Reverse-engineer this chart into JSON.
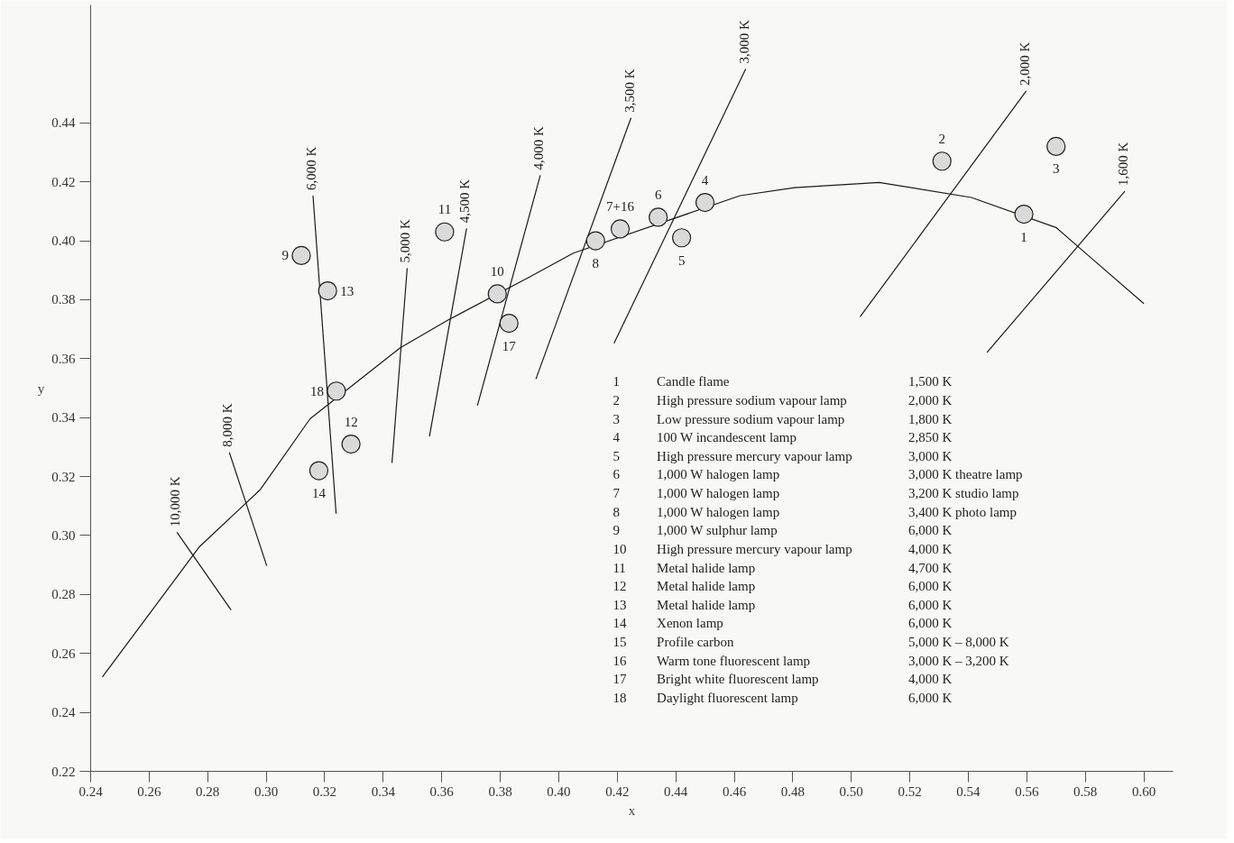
{
  "chart_data": {
    "type": "scatter",
    "xlabel": "x",
    "ylabel": "y",
    "xlim": [
      0.24,
      0.61
    ],
    "ylim": [
      0.22,
      0.48
    ],
    "xticks": [
      0.24,
      0.26,
      0.28,
      {
        "value": 0.3,
        "label": "0.30"
      },
      0.32,
      0.34,
      0.36,
      0.38,
      {
        "value": 0.4,
        "label": "0.40"
      },
      0.42,
      0.44,
      0.46,
      0.48,
      {
        "value": 0.5,
        "label": "0.50"
      },
      0.52,
      0.54,
      0.56,
      0.58,
      {
        "value": 0.6,
        "label": "0.60"
      }
    ],
    "yticks": [
      0.22,
      0.24,
      0.26,
      0.28,
      {
        "value": 0.3,
        "label": "0.30"
      },
      0.32,
      0.34,
      0.36,
      0.38,
      {
        "value": 0.4,
        "label": "0.40"
      },
      0.42,
      0.44
    ],
    "series": [
      {
        "type": "line",
        "color": "#1a1a1a",
        "x": [
          0.244,
          0.277,
          0.298,
          0.315,
          0.3457,
          0.362,
          0.39,
          0.405,
          0.462,
          0.4806,
          0.5095,
          0.541,
          0.57,
          0.581,
          0.6
        ],
        "values": [
          0.252,
          0.296,
          0.3156,
          0.3396,
          0.3636,
          0.373,
          0.3877,
          0.3958,
          0.4153,
          0.418,
          0.4198,
          0.4147,
          0.4045,
          0.395,
          0.3787
        ]
      },
      {
        "type": "line",
        "name": "10,000 K",
        "color": "#1a1a1a",
        "x": [
          0.2695,
          0.288
        ],
        "values": [
          0.3011,
          0.2747
        ]
      },
      {
        "type": "line",
        "name": "8,000 K",
        "color": "#1a1a1a",
        "x": [
          0.2874,
          0.3002
        ],
        "values": [
          0.3282,
          0.2897
        ]
      },
      {
        "type": "line",
        "name": "6,000 K",
        "color": "#1a1a1a",
        "x": [
          0.316,
          0.3239
        ],
        "values": [
          0.4153,
          0.3074
        ]
      },
      {
        "type": "line",
        "name": "5,000 K",
        "color": "#1a1a1a",
        "x": [
          0.3482,
          0.343
        ],
        "values": [
          0.3907,
          0.3246
        ]
      },
      {
        "type": "line",
        "name": "4,500 K",
        "color": "#1a1a1a",
        "x": [
          0.3685,
          0.3558
        ],
        "values": [
          0.4042,
          0.3336
        ]
      },
      {
        "type": "line",
        "name": "4,000 K",
        "color": "#1a1a1a",
        "x": [
          0.3937,
          0.3722
        ],
        "values": [
          0.4222,
          0.3441
        ]
      },
      {
        "type": "line",
        "name": "3,500 K",
        "color": "#1a1a1a",
        "x": [
          0.4247,
          0.3922
        ],
        "values": [
          0.4417,
          0.3531
        ]
      },
      {
        "type": "line",
        "name": "3,000 K",
        "color": "#1a1a1a",
        "x": [
          0.4639,
          0.4189
        ],
        "values": [
          0.4583,
          0.3652
        ]
      },
      {
        "type": "line",
        "name": "2,000 K",
        "color": "#1a1a1a",
        "x": [
          0.5598,
          0.503
        ],
        "values": [
          0.4508,
          0.3742
        ]
      },
      {
        "type": "line",
        "name": "1,600 K",
        "color": "#1a1a1a",
        "x": [
          0.5935,
          0.5464
        ],
        "values": [
          0.4168,
          0.3621
        ]
      },
      {
        "name": "1",
        "marker": "circle",
        "color": "#dadada",
        "x": [
          0.559
        ],
        "values": [
          0.409
        ]
      },
      {
        "name": "2",
        "marker": "circle",
        "color": "#dadada",
        "x": [
          0.531
        ],
        "values": [
          0.427
        ]
      },
      {
        "name": "3",
        "marker": "circle",
        "color": "#dadada",
        "x": [
          0.57
        ],
        "values": [
          0.432
        ]
      },
      {
        "name": "4",
        "marker": "circle",
        "color": "#dadada",
        "x": [
          0.45
        ],
        "values": [
          0.413
        ]
      },
      {
        "name": "5",
        "marker": "circle",
        "color": "#dadada",
        "x": [
          0.442
        ],
        "values": [
          0.401
        ]
      },
      {
        "name": "6",
        "marker": "circle",
        "color": "#dadada",
        "x": [
          0.434
        ],
        "values": [
          0.408
        ]
      },
      {
        "name": "7+16",
        "marker": "circle",
        "color": "#dadada",
        "x": [
          0.421
        ],
        "values": [
          0.404
        ]
      },
      {
        "name": "8",
        "marker": "circle",
        "color": "#dadada",
        "x": [
          0.4126
        ],
        "values": [
          0.4
        ]
      },
      {
        "name": "9",
        "marker": "circle",
        "color": "#dadada",
        "x": [
          0.312
        ],
        "values": [
          0.395
        ]
      },
      {
        "name": "10",
        "marker": "circle",
        "color": "#dadada",
        "x": [
          0.379
        ],
        "values": [
          0.382
        ]
      },
      {
        "name": "11",
        "marker": "circle",
        "color": "#dadada",
        "x": [
          0.361
        ],
        "values": [
          0.403
        ]
      },
      {
        "name": "12",
        "marker": "circle",
        "color": "#dadada",
        "x": [
          0.329
        ],
        "values": [
          0.331
        ]
      },
      {
        "name": "13",
        "marker": "circle",
        "color": "#dadada",
        "x": [
          0.321
        ],
        "values": [
          0.383
        ]
      },
      {
        "name": "14",
        "marker": "circle",
        "color": "#dadada",
        "x": [
          0.318
        ],
        "values": [
          0.322
        ]
      },
      {
        "name": "17",
        "marker": "circle",
        "color": "#dadada",
        "x": [
          0.383
        ],
        "values": [
          0.372
        ]
      },
      {
        "name": "18",
        "marker": "circle",
        "color": "#dadada",
        "x": [
          0.324
        ],
        "values": [
          0.349
        ]
      }
    ],
    "annotations": [
      "1\tCandle flame\t1,500 K",
      "2\tHigh pressure sodium vapour lamp\t2,000 K",
      "3\tLow pressure sodium vapour lamp\t1,800 K",
      "4\t100 W incandescent lamp\t2,850 K",
      "5\tHigh pressure mercury vapour lamp\t3,000 K",
      "6\t1,000 W halogen lamp\t3,000 K theatre lamp",
      "7\t1,000 W halogen lamp\t3,200 K studio lamp",
      "8\t1,000 W halogen lamp\t3,400 K photo lamp",
      "9\t1,000 W sulphur lamp\t6,000 K",
      "10\tHigh pressure mercury vapour lamp\t4,000 K",
      "11\tMetal halide lamp\t4,700 K",
      "12\tMetal halide lamp\t6,000 K",
      "13\tMetal halide lamp\t6,000 K",
      "14\tXenon lamp\t6,000 K",
      "15\tProfile carbon\t5,000 K – 8,000 K",
      "16\tWarm tone fluorescent lamp\t3,000 K – 3,200 K",
      "17\tBright white fluorescent lamp\t4,000 K",
      "18\tDaylight fluorescent lamp\t6,000 K"
    ]
  }
}
